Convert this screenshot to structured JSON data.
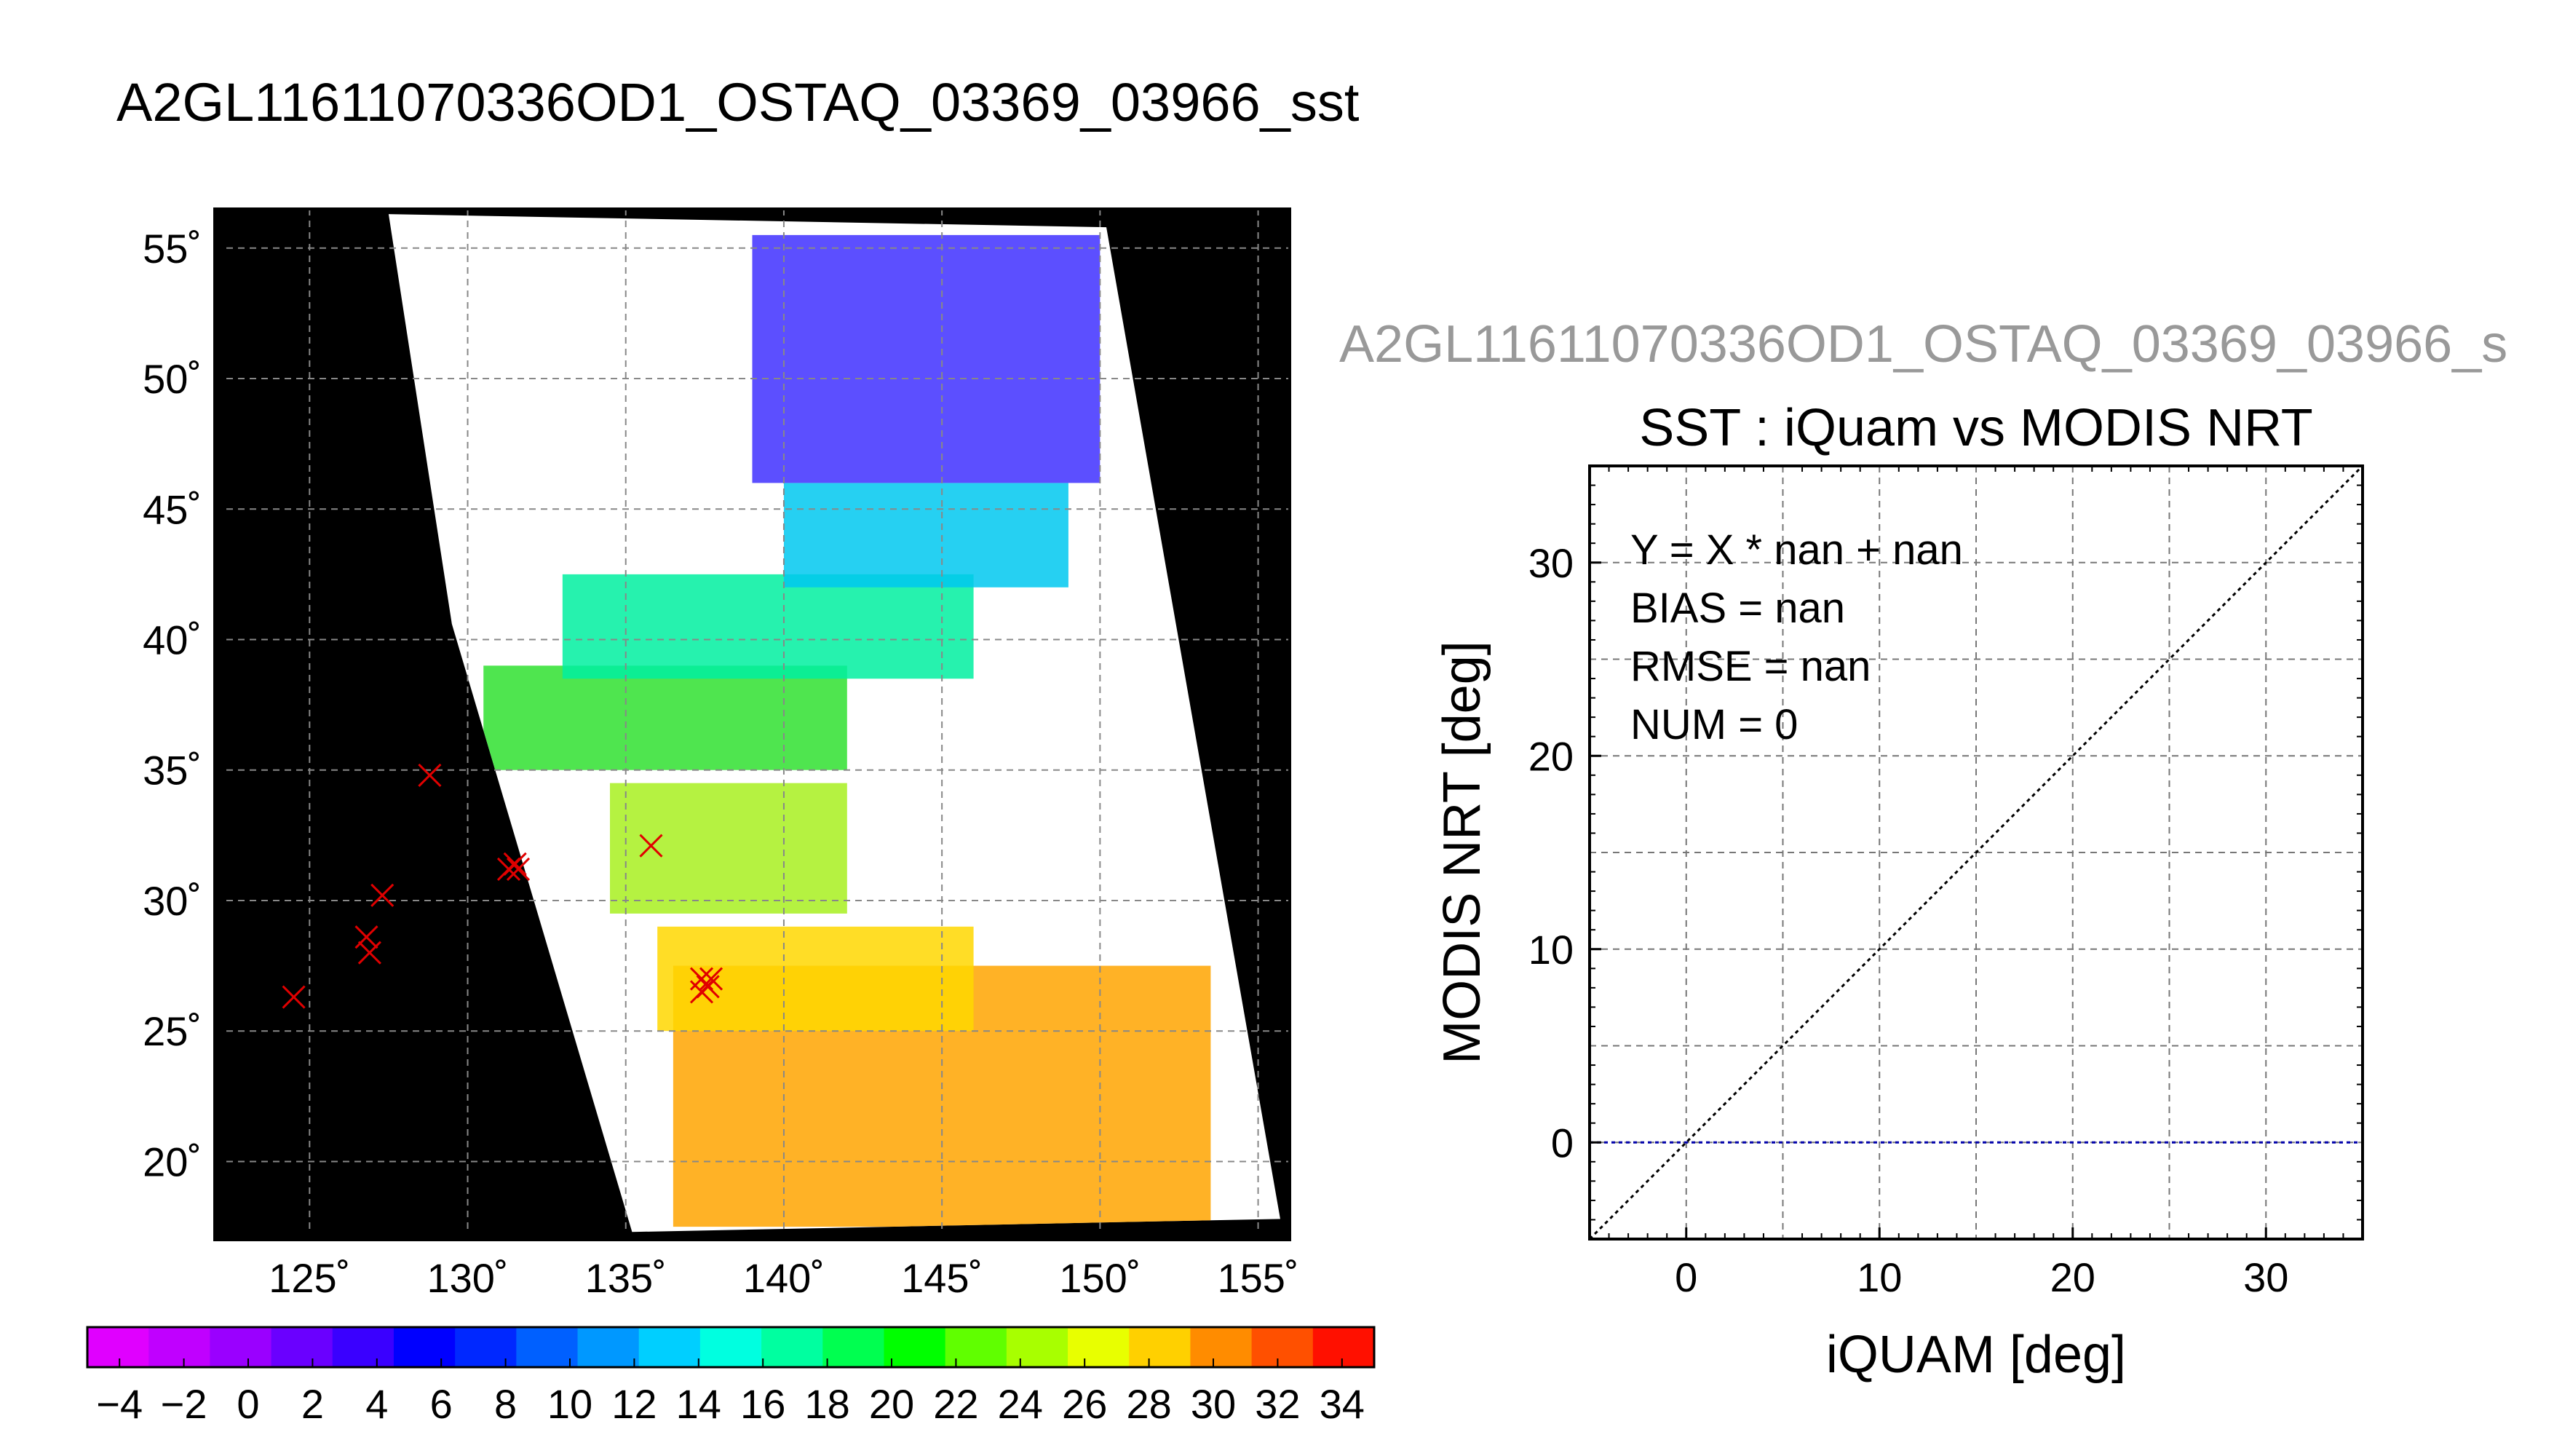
{
  "figure_title": "A2GL11611070336OD1_OSTAQ_03369_03966_sst",
  "chart_data": [
    {
      "type": "heatmap",
      "description_role": "sst-map",
      "title": "A2GL11611070336OD1_OSTAQ_03369_03966_sst",
      "xlim": [
        122,
        156
      ],
      "ylim": [
        17,
        56.5
      ],
      "x_ticks": [
        125,
        130,
        135,
        140,
        145,
        150,
        155
      ],
      "y_ticks": [
        20,
        25,
        30,
        35,
        40,
        45,
        50,
        55
      ],
      "x_tick_labels": [
        "125˚",
        "130˚",
        "135˚",
        "140˚",
        "145˚",
        "150˚",
        "155˚"
      ],
      "y_tick_labels": [
        "20˚",
        "25˚",
        "30˚",
        "35˚",
        "40˚",
        "45˚",
        "50˚",
        "55˚"
      ],
      "grid": true,
      "background_color": "#000000",
      "swath_color": "#ffffff",
      "swath_polygon": [
        [
          135.2,
          17.3
        ],
        [
          155.7,
          17.8
        ],
        [
          150.2,
          55.8
        ],
        [
          127.5,
          56.3
        ],
        [
          129.5,
          40.6
        ]
      ],
      "sst_regions": [
        {
          "lon": [
            136.5,
            153.5
          ],
          "lat": [
            17.5,
            27.5
          ],
          "sst": 30,
          "color": "#ffa500"
        },
        {
          "lon": [
            136.0,
            146.0
          ],
          "lat": [
            25.0,
            29.0
          ],
          "sst": 28,
          "color": "#ffd700"
        },
        {
          "lon": [
            134.5,
            142.0
          ],
          "lat": [
            29.5,
            34.5
          ],
          "sst": 24,
          "color": "#a8f020"
        },
        {
          "lon": [
            130.5,
            142.0
          ],
          "lat": [
            35.0,
            39.0
          ],
          "sst": 20,
          "color": "#30e030"
        },
        {
          "lon": [
            133.0,
            146.0
          ],
          "lat": [
            38.5,
            42.5
          ],
          "sst": 16,
          "color": "#00f0a0"
        },
        {
          "lon": [
            140.0,
            149.0
          ],
          "lat": [
            42.0,
            46.0
          ],
          "sst": 10,
          "color": "#00c8f0"
        },
        {
          "lon": [
            139.0,
            150.0
          ],
          "lat": [
            46.0,
            55.5
          ],
          "sst": 2,
          "color": "#4030ff"
        }
      ],
      "markers": {
        "symbol": "x",
        "color": "#e00000",
        "points": [
          {
            "lon": 128.8,
            "lat": 34.8
          },
          {
            "lon": 127.3,
            "lat": 30.2
          },
          {
            "lon": 126.8,
            "lat": 28.6
          },
          {
            "lon": 126.9,
            "lat": 28.0
          },
          {
            "lon": 124.5,
            "lat": 26.3
          },
          {
            "lon": 131.3,
            "lat": 31.2
          },
          {
            "lon": 131.6,
            "lat": 31.2
          },
          {
            "lon": 131.5,
            "lat": 31.4
          },
          {
            "lon": 135.8,
            "lat": 32.1
          },
          {
            "lon": 137.4,
            "lat": 27.0
          },
          {
            "lon": 137.6,
            "lat": 26.7
          },
          {
            "lon": 137.4,
            "lat": 26.5
          },
          {
            "lon": 137.7,
            "lat": 27.0
          }
        ]
      }
    },
    {
      "type": "colorbar",
      "description_role": "sst-colorbar",
      "range": [
        -5,
        35
      ],
      "tick_values": [
        -4,
        -2,
        0,
        2,
        4,
        6,
        8,
        10,
        12,
        14,
        16,
        18,
        20,
        22,
        24,
        26,
        28,
        30,
        32,
        34
      ],
      "tick_labels": [
        "−4",
        "−2",
        "0",
        "2",
        "4",
        "6",
        "8",
        "10",
        "12",
        "14",
        "16",
        "18",
        "20",
        "22",
        "24",
        "26",
        "28",
        "30",
        "32",
        "34"
      ],
      "colors": [
        "#e000ff",
        "#c000ff",
        "#9a00ff",
        "#6a00ff",
        "#3a00ff",
        "#0000ff",
        "#0028ff",
        "#0060ff",
        "#0098ff",
        "#00cfff",
        "#00ffe0",
        "#00ffa0",
        "#00ff50",
        "#00ff00",
        "#60ff00",
        "#a8ff00",
        "#e8ff00",
        "#ffd000",
        "#ff8c00",
        "#ff5000",
        "#ff1000"
      ]
    },
    {
      "type": "scatter",
      "description_role": "iquam-vs-modis",
      "subtitle": "A2GL11611070336OD1_OSTAQ_03369_03966_s",
      "title": "SST : iQuam vs MODIS NRT",
      "xlabel": "iQUAM [deg]",
      "ylabel": "MODIS NRT [deg]",
      "xlim": [
        -5,
        35
      ],
      "ylim": [
        -5,
        35
      ],
      "x_ticks": [
        0,
        10,
        20,
        30
      ],
      "y_ticks": [
        0,
        10,
        20,
        30
      ],
      "grid_step": 5,
      "grid": true,
      "points": [],
      "reference_lines": [
        {
          "kind": "one-to-one",
          "points": [
            [
              -5,
              -5
            ],
            [
              35,
              35
            ]
          ],
          "color": "#000000",
          "style": "dotted"
        },
        {
          "kind": "zero",
          "points": [
            [
              -5,
              0
            ],
            [
              35,
              0
            ]
          ],
          "color": "#0000aa",
          "style": "dotted"
        }
      ],
      "stats": [
        "Y = X * nan + nan",
        "BIAS = nan",
        "RMSE = nan",
        "NUM = 0"
      ]
    }
  ]
}
